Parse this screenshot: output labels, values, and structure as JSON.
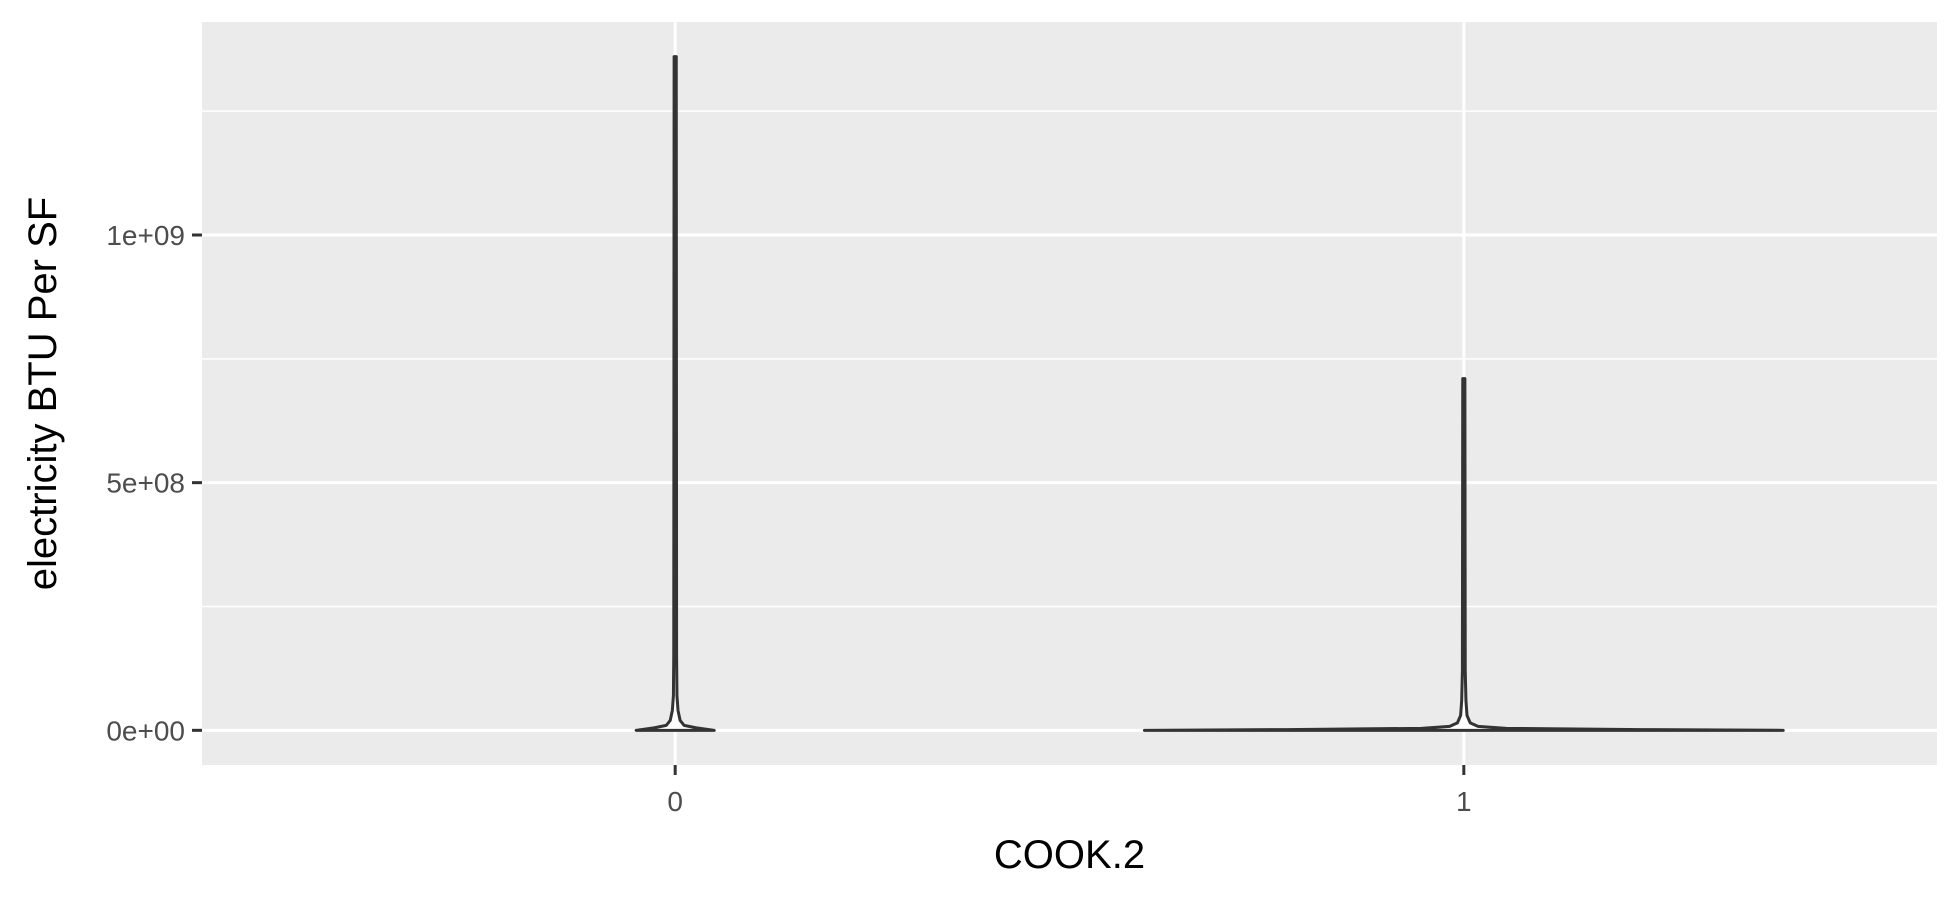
{
  "chart_data": {
    "type": "violin",
    "xlabel": "COOK.2",
    "ylabel": "electricity BTU Per SF",
    "categories": [
      "0",
      "1"
    ],
    "y_ticks": [
      {
        "value": 0,
        "label": "0e+00"
      },
      {
        "value": 500000000,
        "label": "5e+08"
      },
      {
        "value": 1000000000,
        "label": "1e+09"
      }
    ],
    "ylim": [
      -70000000,
      1430000000
    ],
    "grid": true,
    "colors": {
      "panel": "#ebebeb",
      "grid": "#ffffff",
      "outline": "#333333"
    },
    "series": [
      {
        "category": "0",
        "max": 1360000000,
        "profile": [
          {
            "y": 0,
            "width": 0.11
          },
          {
            "y": 2000000,
            "width": 0.09
          },
          {
            "y": 5000000,
            "width": 0.06
          },
          {
            "y": 10000000,
            "width": 0.025
          },
          {
            "y": 20000000,
            "width": 0.014
          },
          {
            "y": 40000000,
            "width": 0.008
          },
          {
            "y": 70000000,
            "width": 0.005
          },
          {
            "y": 150000000,
            "width": 0.004
          },
          {
            "y": 1360000000,
            "width": 0.003
          }
        ]
      },
      {
        "category": "1",
        "max": 710000000,
        "profile": [
          {
            "y": 0,
            "width": 0.9
          },
          {
            "y": 1500000,
            "width": 0.5
          },
          {
            "y": 4000000,
            "width": 0.12
          },
          {
            "y": 8000000,
            "width": 0.04
          },
          {
            "y": 15000000,
            "width": 0.018
          },
          {
            "y": 30000000,
            "width": 0.009
          },
          {
            "y": 60000000,
            "width": 0.006
          },
          {
            "y": 120000000,
            "width": 0.004
          },
          {
            "y": 710000000,
            "width": 0.003
          }
        ]
      }
    ]
  }
}
